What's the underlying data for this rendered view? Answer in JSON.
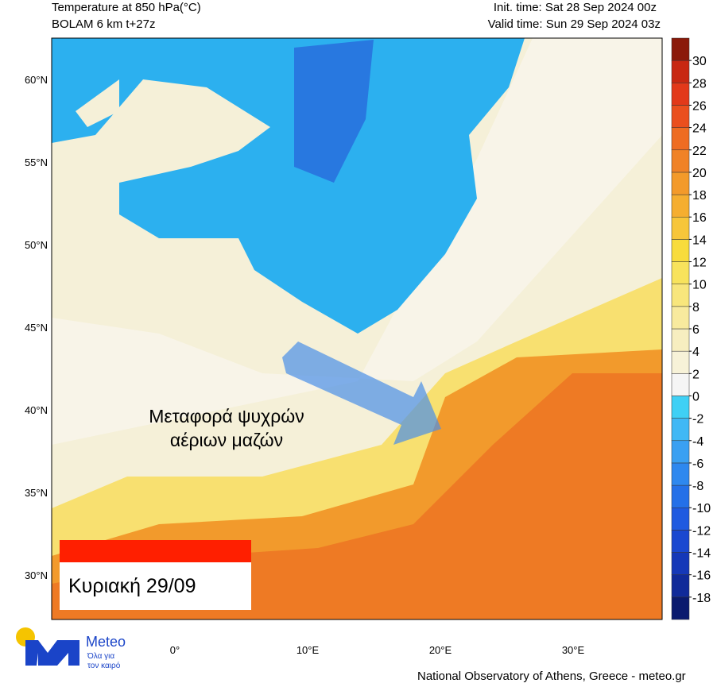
{
  "header": {
    "title": "Temperature at 850 hPa(°C)",
    "model": "BOLAM 6 km t+27z",
    "init_time": "Init. time: Sat 28 Sep 2024 00z",
    "valid_time": "Valid time: Sun 29 Sep 2024 03z"
  },
  "colorbar": {
    "lim": [
      -20,
      32
    ],
    "ticks": [
      30,
      28,
      26,
      24,
      22,
      20,
      18,
      16,
      14,
      12,
      10,
      8,
      6,
      4,
      2,
      0,
      -2,
      -4,
      -6,
      -8,
      -10,
      -12,
      -14,
      -16,
      -18
    ],
    "colors": [
      "#0a1a6e",
      "#102a99",
      "#1538b8",
      "#1a48d0",
      "#1f5ae0",
      "#2470e8",
      "#2e88ef",
      "#3aa0f2",
      "#40b8f5",
      "#3fd0f5",
      "#f5f5f5",
      "#f7f2d8",
      "#f7eec0",
      "#f8ea9e",
      "#f8e67c",
      "#f8e35c",
      "#f8dc3c",
      "#f7c63a",
      "#f5ae30",
      "#f39a2a",
      "#f08226",
      "#ee6c22",
      "#ea4f1e",
      "#e2391a",
      "#c82812",
      "#8b1a0a"
    ]
  },
  "map": {
    "lat_labels": [
      "60°N",
      "55°N",
      "50°N",
      "45°N",
      "40°N",
      "35°N",
      "30°N"
    ],
    "lon_labels": [
      "0°",
      "10°E",
      "20°E",
      "30°E"
    ],
    "annotation": [
      "Μεταφορά ψυχρών",
      "αέριων μαζών"
    ],
    "date_label": "Κυριακή 29/09"
  },
  "logo": {
    "name": "Meteo",
    "tagline": [
      "Όλα για",
      "τον καιρό"
    ]
  },
  "footer": "National Observatory of Athens, Greece - meteo.gr"
}
